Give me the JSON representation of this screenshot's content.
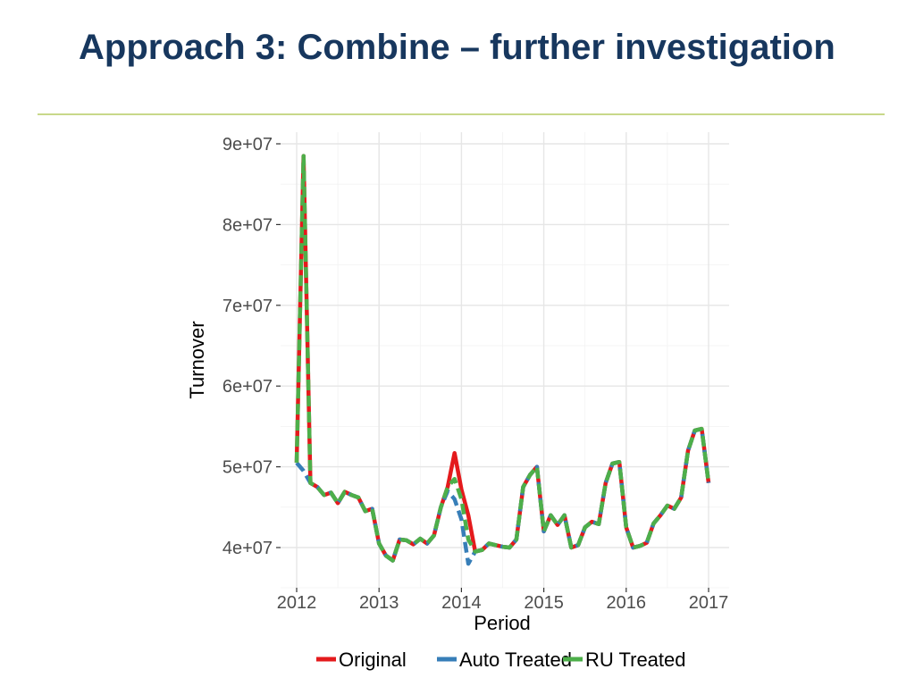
{
  "slide": {
    "title": "Approach 3: Combine – further investigation"
  },
  "chart_data": {
    "type": "line",
    "title": "",
    "xlabel": "Period",
    "ylabel": "Turnover",
    "xlim": [
      2012,
      2017
    ],
    "ylim": [
      36000000,
      90000000
    ],
    "x_ticks": [
      "2012",
      "2013",
      "2014",
      "2015",
      "2016",
      "2017"
    ],
    "y_ticks": [
      "4e+07",
      "5e+07",
      "6e+07",
      "7e+07",
      "8e+07",
      "9e+07"
    ],
    "grid": true,
    "legend_position": "bottom",
    "x": [
      2012.0,
      2012.083,
      2012.167,
      2012.25,
      2012.333,
      2012.417,
      2012.5,
      2012.583,
      2012.667,
      2012.75,
      2012.833,
      2012.917,
      2013.0,
      2013.083,
      2013.167,
      2013.25,
      2013.333,
      2013.417,
      2013.5,
      2013.583,
      2013.667,
      2013.75,
      2013.833,
      2013.917,
      2014.0,
      2014.083,
      2014.167,
      2014.25,
      2014.333,
      2014.417,
      2014.5,
      2014.583,
      2014.667,
      2014.75,
      2014.833,
      2014.917,
      2015.0,
      2015.083,
      2015.167,
      2015.25,
      2015.333,
      2015.417,
      2015.5,
      2015.583,
      2015.667,
      2015.75,
      2015.833,
      2015.917,
      2016.0,
      2016.083,
      2016.167,
      2016.25,
      2016.333,
      2016.417,
      2016.5,
      2016.583,
      2016.667,
      2016.75,
      2016.833,
      2016.917,
      2017.0
    ],
    "series": [
      {
        "name": "Original",
        "color": "#e41a1c",
        "style": "solid",
        "values": [
          50500000,
          88500000,
          48000000,
          47500000,
          46500000,
          46800000,
          45500000,
          46900000,
          46500000,
          46200000,
          44500000,
          44800000,
          40500000,
          39000000,
          38400000,
          41000000,
          40900000,
          40400000,
          41100000,
          40500000,
          41500000,
          45000000,
          47500000,
          51700000,
          47200000,
          44000000,
          39500000,
          39700000,
          40500000,
          40300000,
          40100000,
          40000000,
          41000000,
          47500000,
          49000000,
          50000000,
          42000000,
          44000000,
          42800000,
          44000000,
          40000000,
          40300000,
          42500000,
          43200000,
          42900000,
          48000000,
          50400000,
          50600000,
          42500000,
          40000000,
          40200000,
          40600000,
          43000000,
          44000000,
          45200000,
          44800000,
          46200000,
          52000000,
          54500000,
          54700000,
          48000000
        ]
      },
      {
        "name": "Auto Treated",
        "color": "#377eb8",
        "style": "dashed",
        "values": [
          50500000,
          49500000,
          48000000,
          47500000,
          46500000,
          46800000,
          45500000,
          46900000,
          46500000,
          46200000,
          44500000,
          44800000,
          40500000,
          39000000,
          38400000,
          41000000,
          40900000,
          40400000,
          41100000,
          40500000,
          41500000,
          45000000,
          47000000,
          46000000,
          43500000,
          38000000,
          39500000,
          39700000,
          40500000,
          40300000,
          40100000,
          40000000,
          41000000,
          47500000,
          49000000,
          50000000,
          42000000,
          44000000,
          42800000,
          44000000,
          40000000,
          40300000,
          42500000,
          43200000,
          42900000,
          48000000,
          50400000,
          50600000,
          42500000,
          40000000,
          40200000,
          40600000,
          43000000,
          44000000,
          45200000,
          44800000,
          46200000,
          52000000,
          54500000,
          54700000,
          48000000
        ]
      },
      {
        "name": "RU Treated",
        "color": "#4daf4a",
        "style": "dashed",
        "values": [
          50500000,
          88500000,
          48000000,
          47500000,
          46500000,
          46800000,
          45500000,
          46900000,
          46500000,
          46200000,
          44500000,
          44800000,
          40500000,
          39000000,
          38400000,
          41000000,
          40900000,
          40400000,
          41100000,
          40500000,
          41500000,
          45000000,
          47500000,
          48500000,
          46000000,
          41000000,
          39500000,
          39700000,
          40500000,
          40300000,
          40100000,
          40000000,
          41000000,
          47500000,
          49000000,
          50000000,
          42000000,
          44000000,
          42800000,
          44000000,
          40000000,
          40300000,
          42500000,
          43200000,
          42900000,
          48000000,
          50400000,
          50600000,
          42500000,
          40000000,
          40200000,
          40600000,
          43000000,
          44000000,
          45200000,
          44800000,
          46200000,
          52000000,
          54500000,
          54700000,
          48000000
        ]
      }
    ]
  }
}
